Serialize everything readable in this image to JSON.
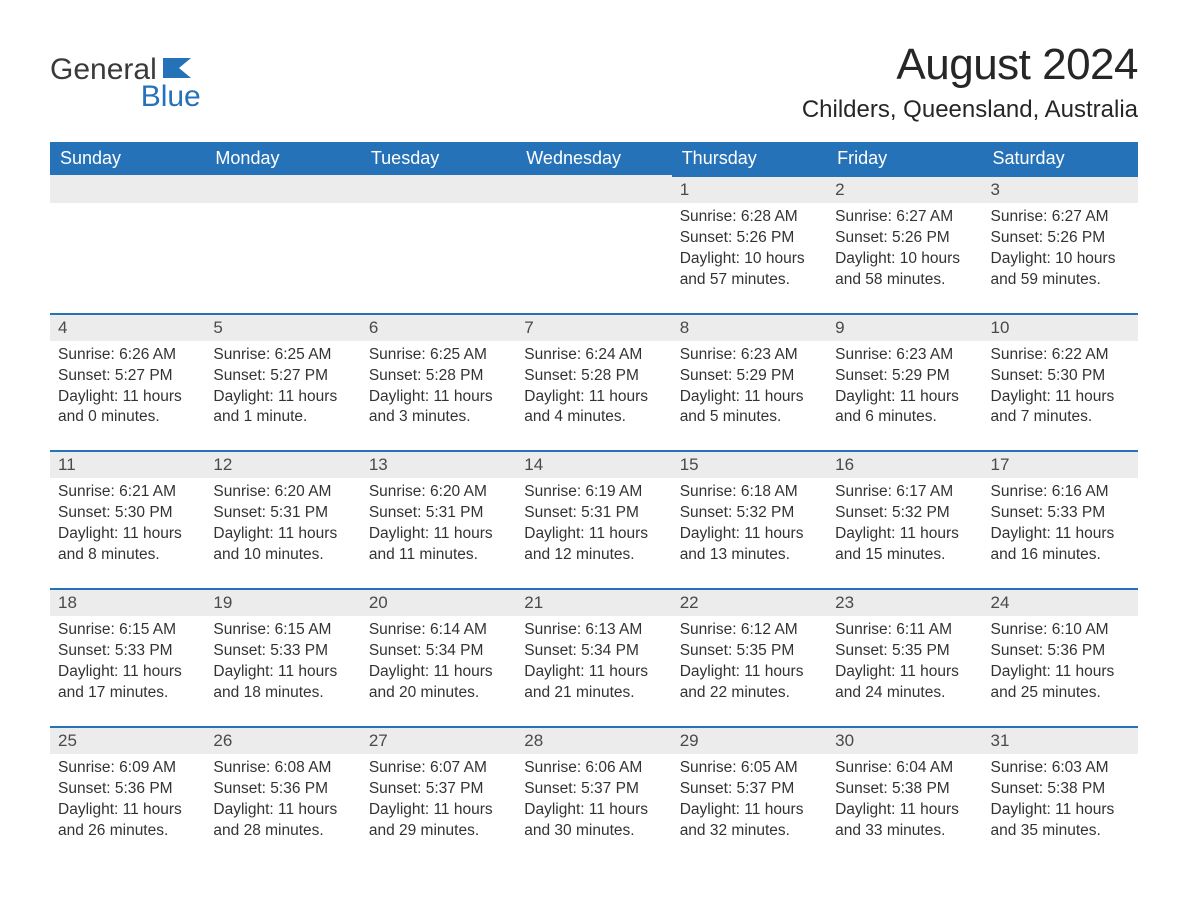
{
  "logo": {
    "text1": "General",
    "text2": "Blue",
    "accent_color": "#2672b8"
  },
  "title": "August 2024",
  "location": "Childers, Queensland, Australia",
  "colors": {
    "header_bg": "#2672b8",
    "header_text": "#ffffff",
    "daynum_bg": "#ececec",
    "daynum_border": "#2672b8",
    "body_text": "#333333",
    "page_bg": "#ffffff"
  },
  "typography": {
    "title_fontsize": 44,
    "location_fontsize": 24,
    "weekday_fontsize": 18,
    "daynum_fontsize": 17,
    "cell_fontsize": 15.5
  },
  "layout": {
    "columns": 7,
    "rows": 5,
    "first_weekday": "Sunday",
    "blank_cells_before": 4
  },
  "weekdays": [
    "Sunday",
    "Monday",
    "Tuesday",
    "Wednesday",
    "Thursday",
    "Friday",
    "Saturday"
  ],
  "days": [
    {
      "n": 1,
      "sr": "6:28 AM",
      "ss": "5:26 PM",
      "dl": "10 hours and 57 minutes."
    },
    {
      "n": 2,
      "sr": "6:27 AM",
      "ss": "5:26 PM",
      "dl": "10 hours and 58 minutes."
    },
    {
      "n": 3,
      "sr": "6:27 AM",
      "ss": "5:26 PM",
      "dl": "10 hours and 59 minutes."
    },
    {
      "n": 4,
      "sr": "6:26 AM",
      "ss": "5:27 PM",
      "dl": "11 hours and 0 minutes."
    },
    {
      "n": 5,
      "sr": "6:25 AM",
      "ss": "5:27 PM",
      "dl": "11 hours and 1 minute."
    },
    {
      "n": 6,
      "sr": "6:25 AM",
      "ss": "5:28 PM",
      "dl": "11 hours and 3 minutes."
    },
    {
      "n": 7,
      "sr": "6:24 AM",
      "ss": "5:28 PM",
      "dl": "11 hours and 4 minutes."
    },
    {
      "n": 8,
      "sr": "6:23 AM",
      "ss": "5:29 PM",
      "dl": "11 hours and 5 minutes."
    },
    {
      "n": 9,
      "sr": "6:23 AM",
      "ss": "5:29 PM",
      "dl": "11 hours and 6 minutes."
    },
    {
      "n": 10,
      "sr": "6:22 AM",
      "ss": "5:30 PM",
      "dl": "11 hours and 7 minutes."
    },
    {
      "n": 11,
      "sr": "6:21 AM",
      "ss": "5:30 PM",
      "dl": "11 hours and 8 minutes."
    },
    {
      "n": 12,
      "sr": "6:20 AM",
      "ss": "5:31 PM",
      "dl": "11 hours and 10 minutes."
    },
    {
      "n": 13,
      "sr": "6:20 AM",
      "ss": "5:31 PM",
      "dl": "11 hours and 11 minutes."
    },
    {
      "n": 14,
      "sr": "6:19 AM",
      "ss": "5:31 PM",
      "dl": "11 hours and 12 minutes."
    },
    {
      "n": 15,
      "sr": "6:18 AM",
      "ss": "5:32 PM",
      "dl": "11 hours and 13 minutes."
    },
    {
      "n": 16,
      "sr": "6:17 AM",
      "ss": "5:32 PM",
      "dl": "11 hours and 15 minutes."
    },
    {
      "n": 17,
      "sr": "6:16 AM",
      "ss": "5:33 PM",
      "dl": "11 hours and 16 minutes."
    },
    {
      "n": 18,
      "sr": "6:15 AM",
      "ss": "5:33 PM",
      "dl": "11 hours and 17 minutes."
    },
    {
      "n": 19,
      "sr": "6:15 AM",
      "ss": "5:33 PM",
      "dl": "11 hours and 18 minutes."
    },
    {
      "n": 20,
      "sr": "6:14 AM",
      "ss": "5:34 PM",
      "dl": "11 hours and 20 minutes."
    },
    {
      "n": 21,
      "sr": "6:13 AM",
      "ss": "5:34 PM",
      "dl": "11 hours and 21 minutes."
    },
    {
      "n": 22,
      "sr": "6:12 AM",
      "ss": "5:35 PM",
      "dl": "11 hours and 22 minutes."
    },
    {
      "n": 23,
      "sr": "6:11 AM",
      "ss": "5:35 PM",
      "dl": "11 hours and 24 minutes."
    },
    {
      "n": 24,
      "sr": "6:10 AM",
      "ss": "5:36 PM",
      "dl": "11 hours and 25 minutes."
    },
    {
      "n": 25,
      "sr": "6:09 AM",
      "ss": "5:36 PM",
      "dl": "11 hours and 26 minutes."
    },
    {
      "n": 26,
      "sr": "6:08 AM",
      "ss": "5:36 PM",
      "dl": "11 hours and 28 minutes."
    },
    {
      "n": 27,
      "sr": "6:07 AM",
      "ss": "5:37 PM",
      "dl": "11 hours and 29 minutes."
    },
    {
      "n": 28,
      "sr": "6:06 AM",
      "ss": "5:37 PM",
      "dl": "11 hours and 30 minutes."
    },
    {
      "n": 29,
      "sr": "6:05 AM",
      "ss": "5:37 PM",
      "dl": "11 hours and 32 minutes."
    },
    {
      "n": 30,
      "sr": "6:04 AM",
      "ss": "5:38 PM",
      "dl": "11 hours and 33 minutes."
    },
    {
      "n": 31,
      "sr": "6:03 AM",
      "ss": "5:38 PM",
      "dl": "11 hours and 35 minutes."
    }
  ],
  "labels": {
    "sunrise": "Sunrise:",
    "sunset": "Sunset:",
    "daylight": "Daylight:"
  }
}
